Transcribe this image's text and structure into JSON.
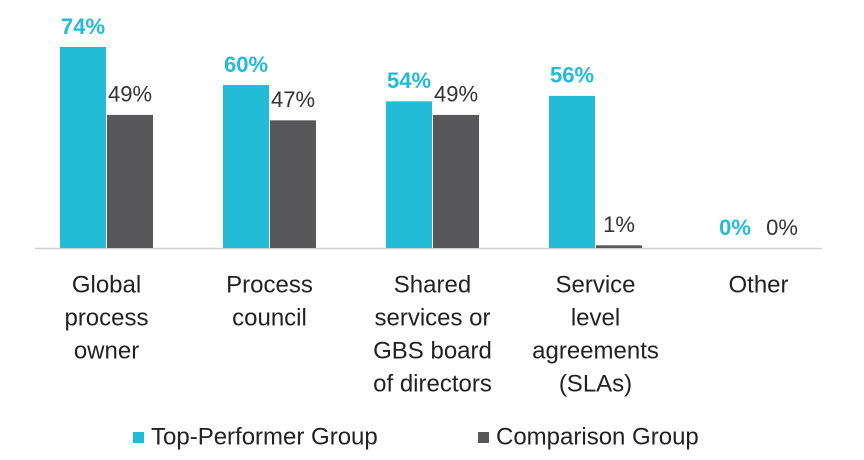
{
  "chart_data": {
    "type": "bar",
    "categories": [
      [
        "Global",
        "process",
        "owner"
      ],
      [
        "Process",
        "council"
      ],
      [
        "Shared",
        "services or",
        "GBS board",
        "of directors"
      ],
      [
        "Service",
        "level",
        "agreements",
        "(SLAs)"
      ],
      [
        "Other"
      ]
    ],
    "series": [
      {
        "name": "Top-Performer Group",
        "color": "#22bcd6",
        "values": [
          74,
          60,
          54,
          56,
          0
        ],
        "value_labels": [
          "74%",
          "60%",
          "54%",
          "56%",
          "0%"
        ]
      },
      {
        "name": "Comparison Group",
        "color": "#58585a",
        "values": [
          49,
          47,
          49,
          1,
          0
        ],
        "value_labels": [
          "49%",
          "47%",
          "49%",
          "1%",
          "0%"
        ]
      }
    ]
  }
}
